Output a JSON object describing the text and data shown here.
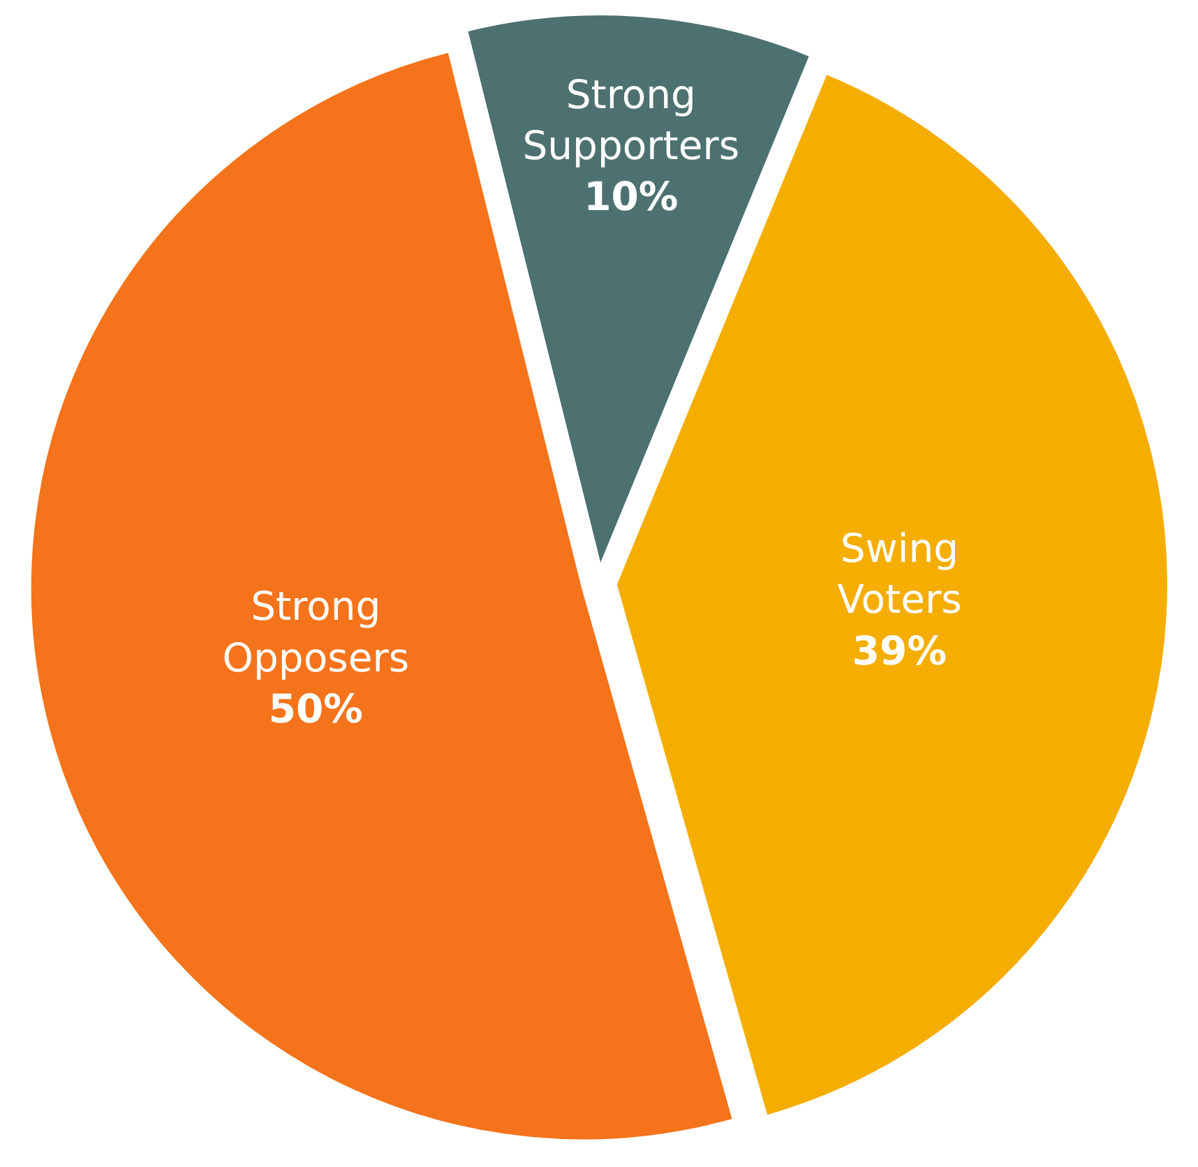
{
  "chart_data": {
    "type": "pie",
    "categories": [
      "Strong Supporters",
      "Swing Voters",
      "Strong Opposers"
    ],
    "values": [
      10,
      39,
      50
    ],
    "value_labels": [
      "10%",
      "39%",
      "50%"
    ],
    "colors": [
      "#4d7070",
      "#f5ad00",
      "#f5731a"
    ],
    "legend": false
  }
}
